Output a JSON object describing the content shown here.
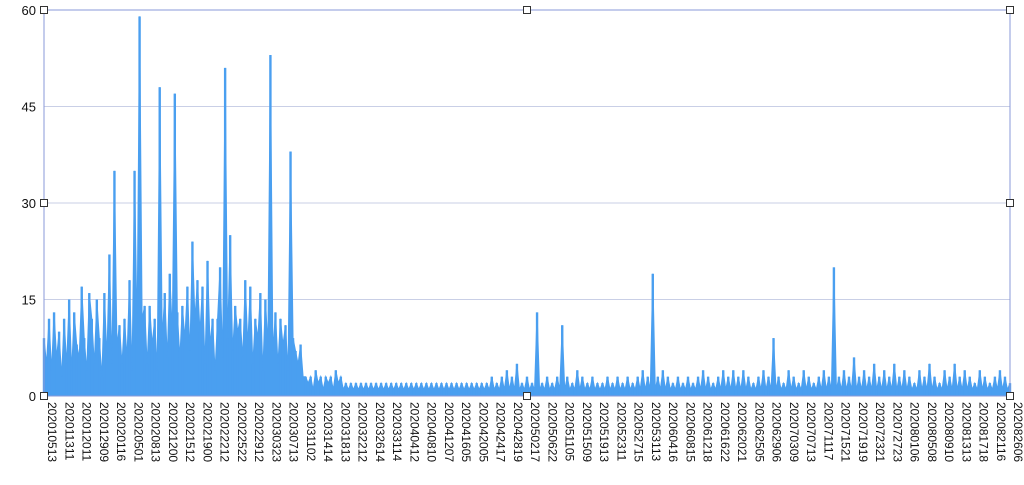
{
  "chart_data": {
    "type": "area",
    "title": "",
    "xlabel": "",
    "ylabel": "",
    "ylim": [
      0,
      60
    ],
    "y_ticks": [
      0,
      15,
      30,
      45,
      60
    ],
    "grid": true,
    "legend": "none",
    "colors": {
      "series": "#4a9ff0",
      "selection": "#8a9ad8"
    },
    "x_tick_labels": [
      "202010513",
      "202011311",
      "202012011",
      "202012909",
      "202020116",
      "202020501",
      "202020813",
      "202021200",
      "202021512",
      "202021900",
      "202022212",
      "202022522",
      "202022912",
      "202030323",
      "202030713",
      "202031102",
      "202031414",
      "202031813",
      "202032212",
      "202032614",
      "202033114",
      "202040412",
      "202040810",
      "202041207",
      "202041605",
      "202042005",
      "202042417",
      "202042819",
      "202050217",
      "202050622",
      "202051105",
      "202051509",
      "202051913",
      "202052311",
      "202052715",
      "202053113",
      "202060416",
      "202060815",
      "202061218",
      "202061622",
      "202062021",
      "202062505",
      "202062906",
      "202070309",
      "202070713",
      "202071117",
      "202071521",
      "202071919",
      "202072321",
      "202072723",
      "202080106",
      "202080508",
      "202080910",
      "202081313",
      "202081718",
      "202082116",
      "202082606"
    ],
    "series": [
      {
        "values": [
          9,
          5,
          12,
          4,
          13,
          6,
          10,
          3,
          12,
          5,
          15,
          4,
          13,
          8,
          6,
          17,
          9,
          4,
          16,
          12,
          5,
          15,
          9,
          3,
          16,
          6,
          22,
          5,
          35,
          8,
          11,
          5,
          12,
          6,
          18,
          4,
          35,
          10,
          59,
          12,
          14,
          5,
          14,
          8,
          12,
          4,
          48,
          9,
          16,
          6,
          19,
          10,
          47,
          13,
          6,
          14,
          9,
          17,
          7,
          24,
          12,
          18,
          10,
          17,
          5,
          21,
          8,
          12,
          4,
          12,
          20,
          6,
          51,
          9,
          25,
          7,
          14,
          10,
          12,
          6,
          18,
          8,
          17,
          5,
          12,
          9,
          16,
          4,
          15,
          8,
          53,
          7,
          13,
          5,
          12,
          8,
          11,
          4,
          38,
          9,
          7,
          5,
          8,
          3,
          3,
          2,
          3,
          1,
          4,
          2,
          3,
          1,
          3,
          2,
          3,
          1,
          4,
          2,
          3,
          1,
          2,
          1,
          2,
          1,
          2,
          1,
          2,
          1,
          2,
          1,
          2,
          1,
          2,
          1,
          2,
          1,
          2,
          1,
          2,
          1,
          2,
          1,
          2,
          1,
          2,
          1,
          2,
          1,
          2,
          1,
          2,
          1,
          2,
          1,
          2,
          1,
          2,
          1,
          2,
          1,
          2,
          1,
          2,
          1,
          2,
          1,
          2,
          1,
          2,
          1,
          2,
          1,
          2,
          1,
          2,
          1,
          2,
          1,
          3,
          1,
          2,
          1,
          3,
          1,
          4,
          1,
          3,
          1,
          5,
          1,
          2,
          1,
          3,
          1,
          2,
          1,
          13,
          1,
          2,
          1,
          3,
          1,
          2,
          1,
          3,
          1,
          11,
          1,
          3,
          1,
          2,
          1,
          4,
          1,
          3,
          1,
          2,
          1,
          3,
          1,
          2,
          1,
          2,
          1,
          3,
          1,
          2,
          1,
          3,
          1,
          2,
          1,
          3,
          1,
          2,
          1,
          3,
          1,
          4,
          1,
          3,
          1,
          19,
          1,
          3,
          1,
          4,
          1,
          3,
          1,
          2,
          1,
          3,
          1,
          2,
          1,
          3,
          1,
          2,
          1,
          3,
          1,
          4,
          1,
          3,
          1,
          2,
          1,
          3,
          1,
          4,
          1,
          3,
          1,
          4,
          1,
          3,
          1,
          4,
          1,
          3,
          1,
          2,
          1,
          3,
          1,
          4,
          1,
          3,
          1,
          9,
          1,
          3,
          1,
          2,
          1,
          4,
          1,
          3,
          1,
          2,
          1,
          4,
          1,
          3,
          1,
          2,
          1,
          3,
          1,
          4,
          1,
          3,
          1,
          20,
          1,
          3,
          1,
          4,
          1,
          3,
          1,
          6,
          1,
          3,
          1,
          4,
          1,
          3,
          1,
          5,
          1,
          3,
          1,
          4,
          1,
          3,
          1,
          5,
          1,
          3,
          1,
          4,
          1,
          3,
          1,
          2,
          1,
          4,
          1,
          3,
          1,
          5,
          1,
          3,
          1,
          2,
          1,
          4,
          1,
          3,
          1,
          5,
          1,
          3,
          1,
          4,
          1,
          3,
          1,
          2,
          1,
          4,
          1,
          3,
          1,
          2,
          1,
          3,
          1,
          4,
          1,
          3,
          1,
          2
        ]
      }
    ]
  }
}
